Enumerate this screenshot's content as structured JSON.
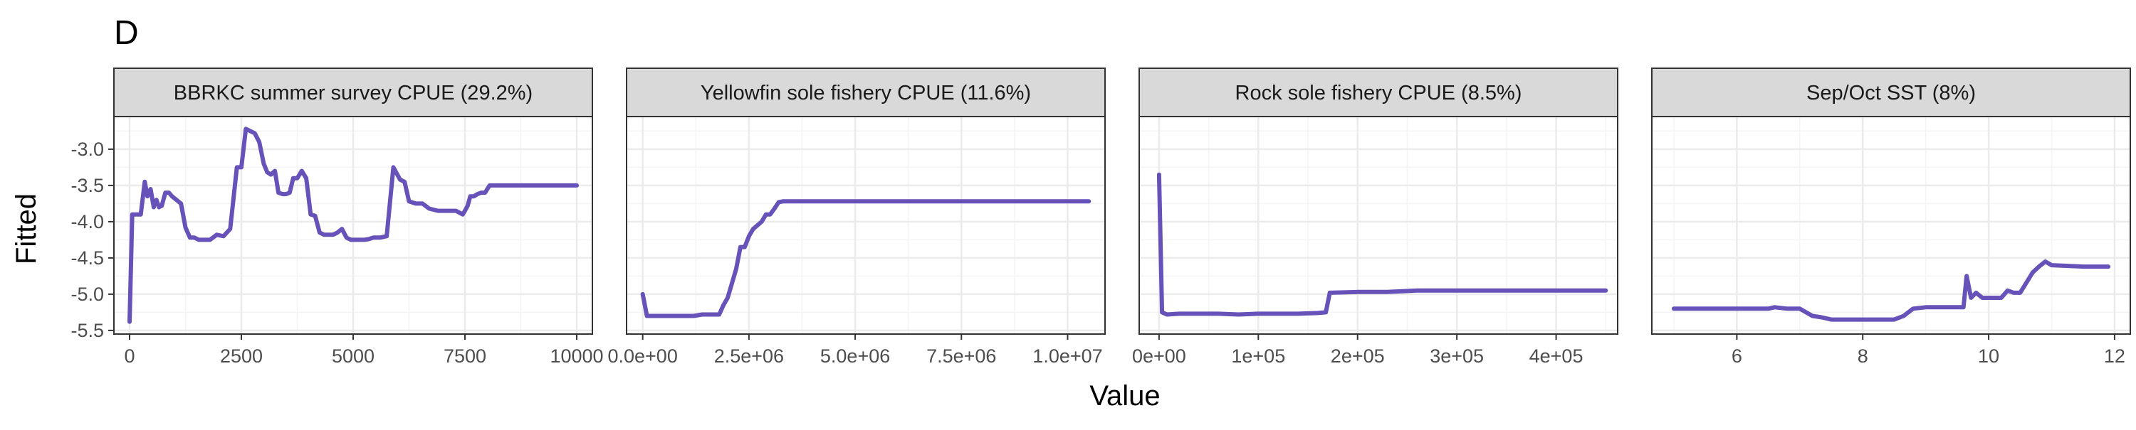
{
  "figure": {
    "panel_tag": "D",
    "xlabel": "Value",
    "ylabel": "Fitted",
    "line_color": "#6652B8",
    "strip_fill": "#D9D9D9",
    "grid_major_color": "#EBEBEB",
    "grid_minor_color": "#F4F4F4",
    "frame_color": "#333333"
  },
  "chart_data": [
    {
      "type": "line",
      "title": "BBRKC summer survey CPUE (29.2%)",
      "xlim": [
        -350,
        10350
      ],
      "ylim": [
        -5.55,
        -2.55
      ],
      "xticks": [
        0,
        2500,
        5000,
        7500,
        10000
      ],
      "xtick_labels": [
        "0",
        "2500",
        "5000",
        "7500",
        "10000"
      ],
      "yticks": [
        -5.5,
        -5.0,
        -4.5,
        -4.0,
        -3.5,
        -3.0
      ],
      "ytick_labels": [
        "-5.5",
        "-5.0",
        "-4.5",
        "-4.0",
        "-3.5",
        "-3.0"
      ],
      "x": [
        0,
        60,
        150,
        250,
        340,
        400,
        470,
        540,
        600,
        660,
        720,
        800,
        880,
        950,
        1050,
        1150,
        1250,
        1350,
        1450,
        1550,
        1650,
        1800,
        1950,
        2100,
        2250,
        2400,
        2500,
        2600,
        2700,
        2800,
        2900,
        3000,
        3080,
        3160,
        3250,
        3330,
        3420,
        3500,
        3580,
        3660,
        3750,
        3850,
        3950,
        4050,
        4150,
        4250,
        4350,
        4450,
        4550,
        4650,
        4750,
        4850,
        4950,
        5050,
        5150,
        5250,
        5350,
        5450,
        5600,
        5750,
        5900,
        6050,
        6150,
        6250,
        6400,
        6550,
        6700,
        6900,
        7100,
        7300,
        7450,
        7500,
        7560,
        7620,
        7700,
        7780,
        7860,
        7950,
        8050,
        8150,
        8250,
        8350,
        8450,
        8550,
        8650,
        8750,
        8850,
        8950,
        9050,
        9150,
        9300,
        9500,
        9700,
        9900,
        10000
      ],
      "y": [
        -5.38,
        -3.9,
        -3.9,
        -3.9,
        -3.45,
        -3.65,
        -3.55,
        -3.8,
        -3.7,
        -3.8,
        -3.78,
        -3.6,
        -3.6,
        -3.65,
        -3.7,
        -3.75,
        -4.08,
        -4.22,
        -4.22,
        -4.25,
        -4.25,
        -4.25,
        -4.18,
        -4.2,
        -4.1,
        -3.25,
        -3.25,
        -2.72,
        -2.75,
        -2.78,
        -2.9,
        -3.2,
        -3.32,
        -3.35,
        -3.3,
        -3.6,
        -3.62,
        -3.62,
        -3.6,
        -3.4,
        -3.4,
        -3.3,
        -3.4,
        -3.9,
        -3.92,
        -4.15,
        -4.18,
        -4.18,
        -4.18,
        -4.15,
        -4.1,
        -4.22,
        -4.25,
        -4.25,
        -4.25,
        -4.25,
        -4.24,
        -4.22,
        -4.22,
        -4.2,
        -3.25,
        -3.42,
        -3.45,
        -3.72,
        -3.75,
        -3.75,
        -3.82,
        -3.85,
        -3.85,
        -3.85,
        -3.9,
        -3.85,
        -3.78,
        -3.65,
        -3.65,
        -3.62,
        -3.6,
        -3.6,
        -3.5,
        -3.5,
        -3.5,
        -3.5,
        -3.5,
        -3.5,
        -3.5,
        -3.5,
        -3.5,
        -3.5,
        -3.5,
        -3.5,
        -3.5,
        -3.5,
        -3.5,
        -3.5,
        -3.5
      ]
    },
    {
      "type": "line",
      "title": "Yellowfin sole fishery CPUE (11.6%)",
      "xlim": [
        -380000,
        10880000
      ],
      "ylim": [
        -5.55,
        -2.55
      ],
      "xticks": [
        0,
        2500000,
        5000000,
        7500000,
        10000000
      ],
      "xtick_labels": [
        "0.0e+00",
        "2.5e+06",
        "5.0e+06",
        "7.5e+06",
        "1.0e+07"
      ],
      "yticks": [
        -5.5,
        -5.0,
        -4.5,
        -4.0,
        -3.5,
        -3.0
      ],
      "ytick_labels": [
        "-5.5",
        "-5.0",
        "-4.5",
        "-4.0",
        "-3.5",
        "-3.0"
      ],
      "x": [
        0,
        100000,
        300000,
        600000,
        900000,
        1200000,
        1400000,
        1600000,
        1800000,
        1900000,
        2000000,
        2100000,
        2200000,
        2300000,
        2400000,
        2500000,
        2600000,
        2700000,
        2800000,
        2900000,
        3000000,
        3100000,
        3200000,
        3300000,
        3500000,
        4000000,
        5000000,
        6000000,
        7000000,
        8000000,
        9000000,
        10000000,
        10500000
      ],
      "y": [
        -5.0,
        -5.3,
        -5.3,
        -5.3,
        -5.3,
        -5.3,
        -5.28,
        -5.28,
        -5.28,
        -5.15,
        -5.05,
        -4.85,
        -4.65,
        -4.35,
        -4.35,
        -4.2,
        -4.1,
        -4.05,
        -4.0,
        -3.9,
        -3.9,
        -3.82,
        -3.73,
        -3.72,
        -3.72,
        -3.72,
        -3.72,
        -3.72,
        -3.72,
        -3.72,
        -3.72,
        -3.72,
        -3.72
      ]
    },
    {
      "type": "line",
      "title": "Rock sole fishery CPUE (8.5%)",
      "xlim": [
        -20000,
        462000
      ],
      "ylim": [
        -5.55,
        -2.55
      ],
      "xticks": [
        0,
        100000,
        200000,
        300000,
        400000
      ],
      "xtick_labels": [
        "0e+00",
        "1e+05",
        "2e+05",
        "3e+05",
        "4e+05"
      ],
      "yticks": [
        -5.5,
        -5.0,
        -4.5,
        -4.0,
        -3.5,
        -3.0
      ],
      "ytick_labels": [
        "-5.5",
        "-5.0",
        "-4.5",
        "-4.0",
        "-3.5",
        "-3.0"
      ],
      "x": [
        0,
        3000,
        8000,
        20000,
        40000,
        60000,
        80000,
        100000,
        120000,
        140000,
        160000,
        168000,
        172000,
        200000,
        230000,
        260000,
        300000,
        350000,
        400000,
        450000
      ],
      "y": [
        -3.35,
        -5.25,
        -5.28,
        -5.27,
        -5.27,
        -5.27,
        -5.28,
        -5.27,
        -5.27,
        -5.27,
        -5.26,
        -5.25,
        -4.98,
        -4.97,
        -4.97,
        -4.95,
        -4.95,
        -4.95,
        -4.95,
        -4.95
      ]
    },
    {
      "type": "line",
      "title": "Sep/Oct SST (8%)",
      "xlim": [
        4.65,
        12.25
      ],
      "ylim": [
        -5.55,
        -2.55
      ],
      "xticks": [
        6,
        8,
        10,
        12
      ],
      "xtick_labels": [
        "6",
        "8",
        "10",
        "12"
      ],
      "yticks": [
        -5.5,
        -5.0,
        -4.5,
        -4.0,
        -3.5,
        -3.0
      ],
      "ytick_labels": [
        "-5.5",
        "-5.0",
        "-4.5",
        "-4.0",
        "-3.5",
        "-3.0"
      ],
      "x": [
        5.0,
        5.5,
        6.0,
        6.5,
        6.6,
        6.8,
        7.0,
        7.1,
        7.2,
        7.35,
        7.5,
        7.8,
        8.0,
        8.2,
        8.5,
        8.65,
        8.8,
        9.0,
        9.3,
        9.6,
        9.65,
        9.72,
        9.8,
        9.9,
        10.0,
        10.2,
        10.3,
        10.4,
        10.5,
        10.7,
        10.8,
        10.9,
        11.0,
        11.5,
        11.9
      ],
      "y": [
        -5.2,
        -5.2,
        -5.2,
        -5.2,
        -5.18,
        -5.2,
        -5.2,
        -5.25,
        -5.3,
        -5.32,
        -5.35,
        -5.35,
        -5.35,
        -5.35,
        -5.35,
        -5.3,
        -5.2,
        -5.18,
        -5.18,
        -5.18,
        -4.75,
        -5.05,
        -4.98,
        -5.05,
        -5.05,
        -5.05,
        -4.95,
        -4.98,
        -4.98,
        -4.7,
        -4.62,
        -4.55,
        -4.6,
        -4.62,
        -4.62
      ]
    }
  ]
}
